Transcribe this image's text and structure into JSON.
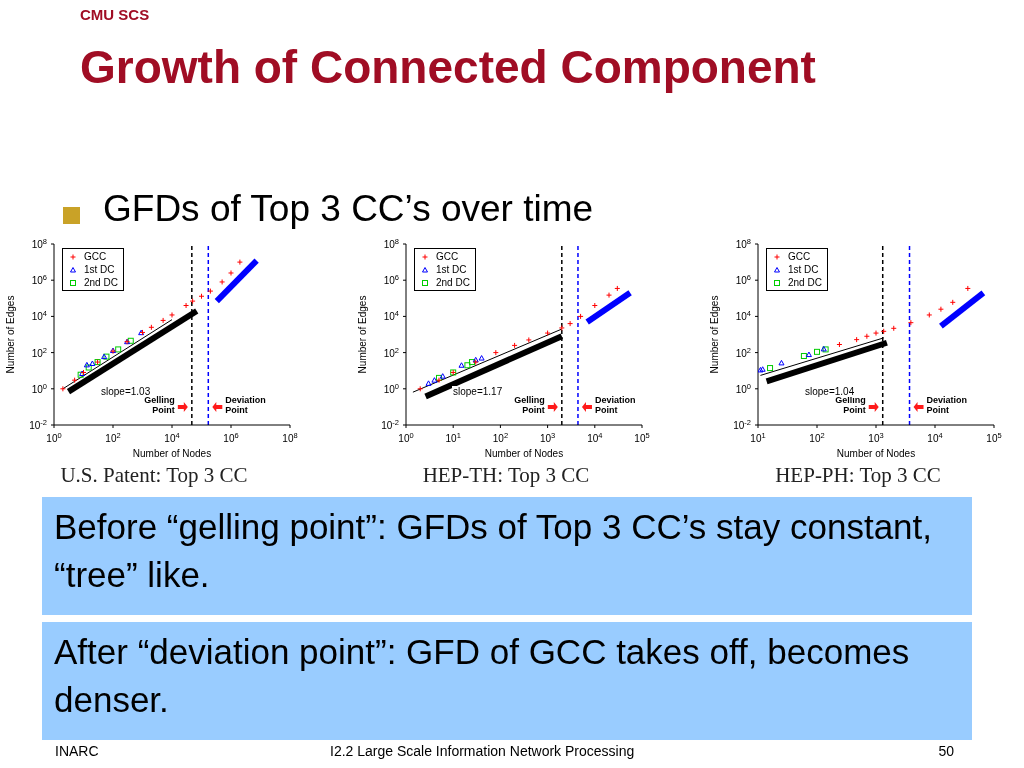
{
  "chart_data": [
    {
      "type": "other",
      "title": "Growth of Connected Component",
      "annotations": [
        "CMU SCS",
        "GFDs of Top 3 CC’s over time"
      ]
    },
    {
      "type": "scatter",
      "title": "U.S. Patent: Top 3 CC",
      "xlabel": "Number of Nodes",
      "ylabel": "Number of Edges",
      "log": "xy",
      "legend": "top left",
      "xlim": [
        1,
        100000000
      ],
      "xticks": [
        {
          "value": 1,
          "label": "10$^{0}$"
        },
        {
          "value": 100,
          "label": "10$^{2}$"
        },
        {
          "value": 10000,
          "label": "10$^{4}$"
        },
        {
          "value": 1000000,
          "label": "10$^{6}$"
        },
        {
          "value": 100000000,
          "label": "10$^{8}$"
        }
      ],
      "ylim": [
        0.01,
        100000000
      ],
      "yticks": [
        {
          "value": 0.01,
          "label": "10$^{-2}$"
        },
        {
          "value": 1,
          "label": "10$^{0}$"
        },
        {
          "value": 100,
          "label": "10$^{2}$"
        },
        {
          "value": 10000,
          "label": "10$^{4}$"
        },
        {
          "value": 1000000,
          "label": "10$^{6}$"
        },
        {
          "value": 100000000,
          "label": "10$^{8}$"
        }
      ],
      "series": [
        {
          "type": "line",
          "color": "#000000",
          "x": [
            3.1,
            69000
          ],
          "values": [
            0.7,
            20000
          ]
        },
        {
          "type": "line",
          "color": "#0000ff",
          "x": [
            330000,
            7400000
          ],
          "values": [
            70000,
            12000000
          ]
        },
        {
          "type": "line",
          "color": "#000000",
          "x": [
            2,
            10000
          ],
          "values": [
            1,
            6600
          ]
        },
        {
          "name": "GCC",
          "type": "scatter",
          "marker": "cross",
          "color": "#ff0000",
          "x": [
            2,
            5,
            10,
            30,
            100,
            300,
            1000,
            2000,
            5000,
            10000,
            30000,
            50000,
            100000,
            200000,
            500000,
            1000000,
            2000000
          ],
          "values": [
            1,
            3,
            8,
            30,
            120,
            400,
            1300,
            2500,
            6000,
            12000,
            40000,
            70000,
            130000,
            250000,
            800000,
            2500000,
            10000000
          ]
        },
        {
          "name": "1st DC",
          "type": "scatter",
          "marker": "triangle",
          "color": "#0000ff",
          "x": [
            9,
            13,
            20,
            50,
            100,
            300,
            900
          ],
          "values": [
            7,
            21,
            25,
            60,
            130,
            400,
            1260
          ]
        },
        {
          "name": "2nd DC",
          "type": "scatter",
          "marker": "square",
          "color": "#00cc00",
          "x": [
            8,
            15,
            30,
            60,
            150,
            400
          ],
          "values": [
            6,
            15,
            30,
            60,
            150,
            450
          ]
        }
      ],
      "ref_lines": [
        {
          "axis": "x",
          "value": 47000,
          "label": "Gelling Point",
          "color": "#000000",
          "line_style": "dashed"
        },
        {
          "axis": "x",
          "value": 170000,
          "label": "Deviation Point",
          "color": "#0000ff",
          "line_style": "dashed"
        }
      ],
      "annotations": [
        "slope=1.03"
      ]
    },
    {
      "type": "scatter",
      "title": "HEP-TH: Top 3 CC",
      "xlabel": "Number of Nodes",
      "ylabel": "Number of Edges",
      "log": "xy",
      "legend": "top left",
      "xlim": [
        1,
        100000
      ],
      "xticks": [
        {
          "value": 1,
          "label": "10$^{0}$"
        },
        {
          "value": 10,
          "label": "10$^{1}$"
        },
        {
          "value": 100,
          "label": "10$^{2}$"
        },
        {
          "value": 1000,
          "label": "10$^{3}$"
        },
        {
          "value": 10000,
          "label": "10$^{4}$"
        },
        {
          "value": 100000,
          "label": "10$^{5}$"
        }
      ],
      "ylim": [
        0.01,
        100000000
      ],
      "yticks": [
        {
          "value": 0.01,
          "label": "10$^{-2}$"
        },
        {
          "value": 1,
          "label": "10$^{0}$"
        },
        {
          "value": 100,
          "label": "10$^{2}$"
        },
        {
          "value": 10000,
          "label": "10$^{4}$"
        },
        {
          "value": 1000000,
          "label": "10$^{6}$"
        },
        {
          "value": 100000000,
          "label": "10$^{8}$"
        }
      ],
      "series": [
        {
          "type": "line",
          "color": "#000000",
          "x": [
            2.6,
            2000
          ],
          "values": [
            0.37,
            810
          ]
        },
        {
          "type": "line",
          "color": "#0000ff",
          "x": [
            6900,
            56000
          ],
          "values": [
            4900,
            200000
          ]
        },
        {
          "type": "line",
          "color": "#000000",
          "x": [
            1.4,
            2000
          ],
          "values": [
            0.65,
            2000
          ]
        },
        {
          "name": "GCC",
          "type": "scatter",
          "marker": "cross",
          "color": "#ff0000",
          "x": [
            2,
            5,
            10,
            30,
            80,
            200,
            400,
            1000,
            2000,
            3000,
            5000,
            10000,
            20000,
            30000
          ],
          "values": [
            1,
            3,
            8,
            30,
            100,
            250,
            500,
            1200,
            2300,
            4000,
            10000,
            40000,
            150000,
            350000
          ]
        },
        {
          "name": "1st DC",
          "type": "scatter",
          "marker": "triangle",
          "color": "#0000ff",
          "x": [
            3,
            4,
            6,
            15,
            30,
            40
          ],
          "values": [
            2,
            3,
            5,
            20,
            40,
            50
          ]
        },
        {
          "name": "2nd DC",
          "type": "scatter",
          "marker": "square",
          "color": "#00cc00",
          "x": [
            5,
            10,
            20,
            25
          ],
          "values": [
            4,
            8,
            20,
            30
          ]
        }
      ],
      "ref_lines": [
        {
          "axis": "x",
          "value": 2000,
          "label": "Gelling Point",
          "color": "#000000",
          "line_style": "dashed"
        },
        {
          "axis": "x",
          "value": 4400,
          "label": "Deviation Point",
          "color": "#0000ff",
          "line_style": "dashed"
        }
      ],
      "annotations": [
        "slope=1.17"
      ]
    },
    {
      "type": "scatter",
      "title": "HEP-PH: Top 3 CC",
      "xlabel": "Number of Nodes",
      "ylabel": "Number of Edges",
      "log": "xy",
      "legend": "top left",
      "xlim": [
        10,
        100000
      ],
      "xticks": [
        {
          "value": 10,
          "label": "10$^{1}$"
        },
        {
          "value": 100,
          "label": "10$^{2}$"
        },
        {
          "value": 1000,
          "label": "10$^{3}$"
        },
        {
          "value": 10000,
          "label": "10$^{4}$"
        },
        {
          "value": 100000,
          "label": "10$^{5}$"
        }
      ],
      "ylim": [
        0.01,
        100000000
      ],
      "yticks": [
        {
          "value": 0.01,
          "label": "10$^{-2}$"
        },
        {
          "value": 1,
          "label": "10$^{0}$"
        },
        {
          "value": 100,
          "label": "10$^{2}$"
        },
        {
          "value": 10000,
          "label": "10$^{4}$"
        },
        {
          "value": 1000000,
          "label": "10$^{6}$"
        },
        {
          "value": 100000000,
          "label": "10$^{8}$"
        }
      ],
      "series": [
        {
          "type": "line",
          "color": "#000000",
          "x": [
            14,
            1530
          ],
          "values": [
            2.6,
            350
          ]
        },
        {
          "type": "line",
          "color": "#0000ff",
          "x": [
            12600,
            66000
          ],
          "values": [
            2900,
            200000
          ]
        },
        {
          "type": "line",
          "color": "#000000",
          "x": [
            11,
            1350
          ],
          "values": [
            5.5,
            650
          ]
        },
        {
          "name": "GCC",
          "type": "scatter",
          "marker": "cross",
          "color": "#ff0000",
          "x": [
            240,
            470,
            700,
            1000,
            1350,
            2000,
            3900,
            8000,
            12600,
            20000,
            36000
          ],
          "values": [
            280,
            520,
            800,
            1200,
            1500,
            2200,
            4500,
            12000,
            25000,
            60000,
            350000
          ]
        },
        {
          "name": "1st DC",
          "type": "scatter",
          "marker": "triangle",
          "color": "#0000ff",
          "x": [
            11,
            12,
            25,
            73,
            130
          ],
          "values": [
            11,
            12,
            27,
            78,
            160
          ]
        },
        {
          "name": "2nd DC",
          "type": "scatter",
          "marker": "square",
          "color": "#00cc00",
          "x": [
            16,
            60,
            100,
            140
          ],
          "values": [
            14,
            65,
            110,
            150
          ]
        }
      ],
      "ref_lines": [
        {
          "axis": "x",
          "value": 1300,
          "label": "Gelling Point",
          "color": "#000000",
          "line_style": "dashed"
        },
        {
          "axis": "x",
          "value": 3700,
          "label": "Deviation Point",
          "color": "#0000ff",
          "line_style": "dashed"
        }
      ],
      "annotations": [
        "slope=1.04"
      ]
    },
    {
      "type": "other",
      "annotations": [
        "Before “gelling point”: GFDs of Top 3 CC’s stay constant, “tree” like.",
        "After “deviation point”: GFD of GCC takes off, becomes denser.",
        "INARC",
        "I2.2 Large Scale Information Network Processing",
        "50"
      ]
    }
  ]
}
